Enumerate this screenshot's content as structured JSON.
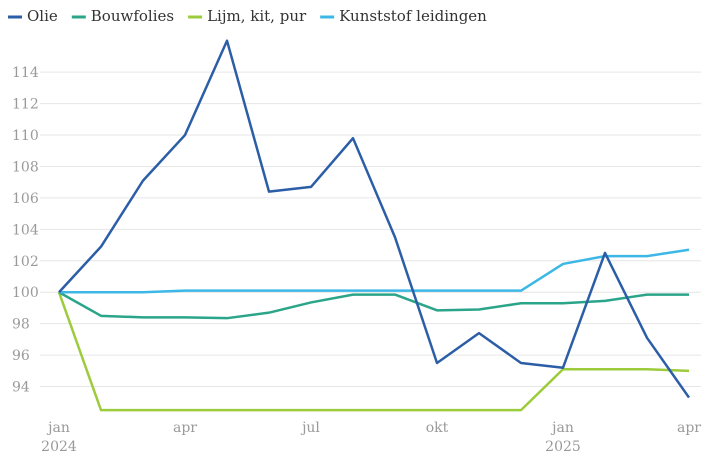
{
  "chart_data": {
    "type": "line",
    "categories": [
      "jan",
      null,
      null,
      "apr",
      null,
      null,
      "jul",
      null,
      null,
      "okt",
      null,
      null,
      "jan",
      null,
      null,
      "apr"
    ],
    "years": [
      "2024",
      null,
      null,
      null,
      null,
      null,
      null,
      null,
      null,
      null,
      null,
      null,
      "2025",
      null,
      null,
      null
    ],
    "series": [
      {
        "name": "Olie",
        "color": "#2b5ea7",
        "values": [
          100,
          102.9,
          107.1,
          110,
          116,
          106.4,
          106.7,
          109.8,
          103.5,
          95.5,
          97.4,
          95.5,
          95.2,
          102.5,
          97.1,
          93.3
        ]
      },
      {
        "name": "Bouwfolies",
        "color": "#2ba58a",
        "values": [
          100,
          98.5,
          98.4,
          98.4,
          98.35,
          98.7,
          99.35,
          99.85,
          99.85,
          98.85,
          98.9,
          99.3,
          99.3,
          99.45,
          99.85,
          99.85
        ]
      },
      {
        "name": "Lijm, kit, pur",
        "color": "#9ccb3b",
        "values": [
          100,
          92.5,
          92.5,
          92.5,
          92.5,
          92.5,
          92.5,
          92.5,
          92.5,
          92.5,
          92.5,
          92.5,
          95.1,
          95.1,
          95.1,
          95
        ]
      },
      {
        "name": "Kunststof leidingen",
        "color": "#3db8e6",
        "values": [
          100,
          100,
          100,
          100.1,
          100.1,
          100.1,
          100.1,
          100.1,
          100.1,
          100.1,
          100.1,
          100.1,
          101.8,
          102.3,
          102.3,
          102.7
        ]
      }
    ],
    "ylim": [
      92,
      117
    ],
    "yticks": [
      94,
      96,
      98,
      100,
      102,
      104,
      106,
      108,
      110,
      112,
      114
    ],
    "grid": true,
    "legend": "top-left"
  }
}
